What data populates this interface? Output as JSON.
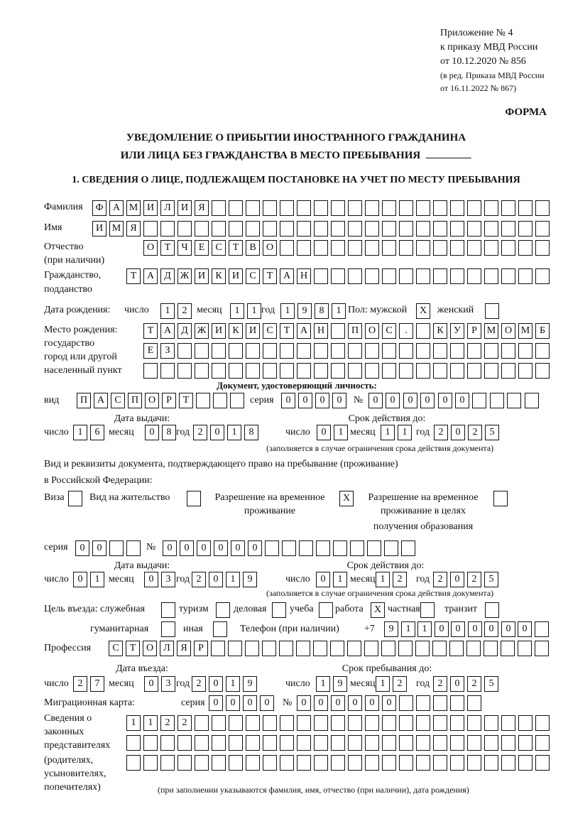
{
  "header": {
    "appendix": [
      "Приложение № 4",
      "к приказу МВД России",
      "от 10.12.2020 № 856"
    ],
    "revision": [
      "(в ред. Приказа МВД России",
      "от 16.11.2022 № 867)"
    ],
    "form_label": "ФОРМА",
    "title_line1": "УВЕДОМЛЕНИЕ О ПРИБЫТИИ ИНОСТРАННОГО ГРАЖДАНИНА",
    "title_line2": "ИЛИ ЛИЦА БЕЗ ГРАЖДАНСТВА В МЕСТО ПРЕБЫВАНИЯ",
    "section1": "1. СВЕДЕНИЯ О ЛИЦЕ, ПОДЛЕЖАЩЕМ ПОСТАНОВКЕ НА УЧЕТ ПО МЕСТУ ПРЕБЫВАНИЯ"
  },
  "labels": {
    "surname": "Фамилия",
    "name": "Имя",
    "patronymic": "Отчество",
    "patronymic_note": "(при наличии)",
    "citizenship": "Гражданство,",
    "citizenship2": "подданство",
    "dob": "Дата рождения:",
    "day": "число",
    "month": "месяц",
    "year": "год",
    "sex_male": "Пол: мужской",
    "sex_female": "женский",
    "birthplace": [
      "Место рождения:",
      "государство",
      "город или другой",
      "населенный пункт"
    ],
    "id_doc_heading": "Документ, удостоверяющий личность:",
    "kind": "вид",
    "series": "серия",
    "number": "№",
    "issue_date": "Дата выдачи:",
    "valid_until": "Срок действия до:",
    "validity_note": "(заполняется в случае ограничения срока действия документа)",
    "stay_doc_heading": "Вид и реквизиты документа, подтверждающего право на пребывание (проживание)",
    "stay_doc_heading2": "в Российской Федерации:",
    "visa": "Виза",
    "residence_permit": "Вид на жительство",
    "temp_residence": [
      "Разрешение на временное",
      "проживание"
    ],
    "temp_residence_edu": [
      "Разрешение на временное",
      "проживание в целях",
      "получения образования"
    ],
    "purpose": "Цель въезда: служебная",
    "tourism": "туризм",
    "business": "деловая",
    "study": "учеба",
    "work": "работа",
    "private": "частная",
    "transit": "транзит",
    "humanitarian": "гуманитарная",
    "other": "иная",
    "phone": "Телефон (при наличии)",
    "phone_prefix": "+7",
    "profession": "Профессия",
    "entry_date": "Дата въезда:",
    "stay_until": "Срок пребывания до:",
    "migration_card": "Миграционная карта:",
    "legal_reps": [
      "Сведения о",
      "законных",
      "представителях",
      "(родителях,",
      "усыновителях,",
      "попечителях)"
    ],
    "legal_reps_note": "(при заполнении указываются фамилия, имя, отчество (при наличии), дата рождения)"
  },
  "fields": {
    "surname": "ФАМИЛИЯ",
    "name": "ИМЯ",
    "patronymic": "ОТЧЕСТВО",
    "citizenship": "ТАДЖИКИСТАН",
    "dob_day": "12",
    "dob_month": "11",
    "dob_year": "1981",
    "sex_male": "X",
    "sex_female": "",
    "birthplace_1": "ТАДЖИКИСТАН ПОС. КУРМОМБ",
    "birthplace_2": "ЕЗ",
    "birthplace_3": "",
    "id_kind": "ПАСПОРТ",
    "id_series": "0000",
    "id_number": "000000",
    "id_issue_day": "16",
    "id_issue_month": "08",
    "id_issue_year": "2018",
    "id_valid_day": "01",
    "id_valid_month": "11",
    "id_valid_year": "2025",
    "visa": "",
    "residence_permit": "",
    "temp_residence": "X",
    "temp_residence_edu": "",
    "stay_series": "00",
    "stay_number": "000000",
    "stay_issue_day": "01",
    "stay_issue_month": "03",
    "stay_issue_year": "2019",
    "stay_valid_day": "01",
    "stay_valid_month": "12",
    "stay_valid_year": "2025",
    "purpose_official": "",
    "purpose_tourism": "",
    "purpose_business": "",
    "purpose_study": "",
    "purpose_work": "X",
    "purpose_private": "",
    "purpose_transit": "",
    "purpose_humanitarian": "",
    "purpose_other": "",
    "phone": "911000000",
    "profession": "СТОЛЯР",
    "entry_day": "27",
    "entry_month": "03",
    "entry_year": "2019",
    "stay_until_day": "19",
    "stay_until_month": "12",
    "stay_until_year": "2025",
    "mig_series": "0000",
    "mig_number": "000000",
    "legal_reps_1": "1122",
    "legal_reps_2": "",
    "legal_reps_3": ""
  }
}
